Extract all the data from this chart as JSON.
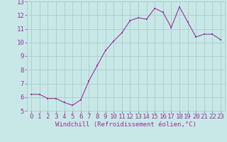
{
  "x": [
    0,
    1,
    2,
    3,
    4,
    5,
    6,
    7,
    8,
    9,
    10,
    11,
    12,
    13,
    14,
    15,
    16,
    17,
    18,
    19,
    20,
    21,
    22,
    23
  ],
  "y": [
    6.2,
    6.2,
    5.9,
    5.9,
    5.6,
    5.4,
    5.8,
    7.2,
    8.3,
    9.4,
    10.1,
    10.7,
    11.6,
    11.8,
    11.7,
    12.5,
    12.2,
    11.1,
    12.6,
    11.5,
    10.4,
    10.6,
    10.6,
    10.2
  ],
  "line_color": "#993399",
  "marker_color": "#993399",
  "bg_color": "#c8e8e8",
  "grid_color": "#aacccc",
  "xlabel": "Windchill (Refroidissement éolien,°C)",
  "ylim": [
    5,
    13
  ],
  "xlim_min": -0.5,
  "xlim_max": 23.5,
  "yticks": [
    5,
    6,
    7,
    8,
    9,
    10,
    11,
    12,
    13
  ],
  "xticks": [
    0,
    1,
    2,
    3,
    4,
    5,
    6,
    7,
    8,
    9,
    10,
    11,
    12,
    13,
    14,
    15,
    16,
    17,
    18,
    19,
    20,
    21,
    22,
    23
  ],
  "tick_color": "#993399",
  "label_color": "#993399",
  "font_size_xlabel": 6.5,
  "font_size_ticks": 6.5
}
